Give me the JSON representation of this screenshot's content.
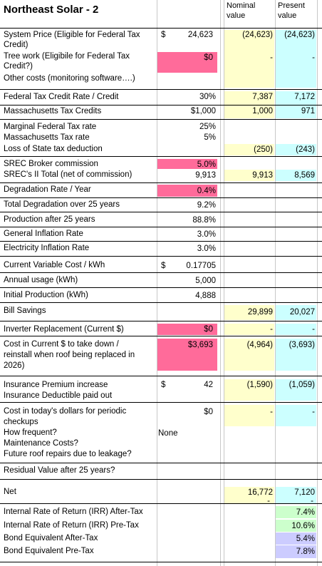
{
  "sheet": {
    "title": "Northeast Solar - 2",
    "col_nominal_1": "Nominal",
    "col_nominal_2": "value",
    "col_present_1": "Present",
    "col_present_2": "value",
    "colors": {
      "pink": "#ff6b9a",
      "yellow": "#ffffcc",
      "cyan": "#ccffff",
      "green": "#ccffcc",
      "lavender": "#ccccff"
    },
    "rows": {
      "system_price_1": "System Price (Eligible for Federal Tax",
      "system_price_2": "Credit)",
      "system_price_currency": "$",
      "system_price_value": "24,623",
      "system_price_nominal": "(24,623)",
      "system_price_present": "(24,623)",
      "tree_work_1": "Tree work (Eligibile for Federal Tax",
      "tree_work_2": "Credit?)",
      "tree_work_value": "$0",
      "tree_work_nominal": "-",
      "tree_work_present": "-",
      "other_costs": "Other costs (monitoring software….)",
      "fed_tax_credit": "Federal Tax Credit Rate / Credit",
      "fed_tax_credit_value": "30%",
      "fed_tax_credit_nominal": "7,387",
      "fed_tax_credit_present": "7,172",
      "ma_tax_credits": "Massachusetts Tax Credits",
      "ma_tax_credits_value": "$1,000",
      "ma_tax_credits_nominal": "1,000",
      "ma_tax_credits_present": "971",
      "marginal_fed": "Marginal Federal Tax rate",
      "marginal_fed_value": "25%",
      "ma_tax_rate": "Massachusetts Tax rate",
      "ma_tax_rate_value": "5%",
      "loss_state": "Loss of State tax deduction",
      "loss_state_nominal": "(250)",
      "loss_state_present": "(243)",
      "srec_broker": "SREC Broker commission",
      "srec_broker_value": "5.0%",
      "srec_total": "SREC's II Total (net of commission)",
      "srec_total_value": "9,913",
      "srec_total_nominal": "9,913",
      "srec_total_present": "8,569",
      "degradation": "Degradation Rate / Year",
      "degradation_value": "0.4%",
      "total_degradation": "Total Degradation over 25 years",
      "total_degradation_value": "9.2%",
      "production_25": "Production after 25 years",
      "production_25_value": "88.8%",
      "general_inflation": "General Inflation Rate",
      "general_inflation_value": "3.0%",
      "electricity_inflation": "Electricity Inflation Rate",
      "electricity_inflation_value": "3.0%",
      "variable_cost": "Current Variable Cost / kWh",
      "variable_cost_currency": "$",
      "variable_cost_value": "0.17705",
      "annual_usage": "Annual usage (kWh)",
      "annual_usage_value": "5,000",
      "initial_production": "Initial Production (kWh)",
      "initial_production_value": "4,888",
      "bill_savings": "Bill Savings",
      "bill_savings_nominal": "29,899",
      "bill_savings_present": "20,027",
      "inverter": "Inverter Replacement (Current $)",
      "inverter_value": "$0",
      "inverter_nominal": "-",
      "inverter_present": "-",
      "roof_cost_1": "Cost in Current $ to take down /",
      "roof_cost_2": "reinstall when roof being replaced in",
      "roof_cost_3": "2026)",
      "roof_cost_value": "$3,693",
      "roof_cost_nominal": "(4,964)",
      "roof_cost_present": "(3,693)",
      "insurance_premium": "Insurance Premium increase",
      "insurance_premium_currency": "$",
      "insurance_premium_value": "42",
      "insurance_premium_nominal": "(1,590)",
      "insurance_premium_present": "(1,059)",
      "insurance_deductible": "Insurance Deductible paid out",
      "checkups_1": "Cost in today's dollars for periodic",
      "checkups_2": "checkups",
      "checkups_value": "$0",
      "checkups_nominal": "-",
      "checkups_present": "-",
      "how_frequent": "How frequent?",
      "how_frequent_value": "None",
      "maintenance": "Maintenance Costs?",
      "future_roof": "Future roof repairs due to leakage?",
      "residual": "Residual Value after 25 years?",
      "net": "Net",
      "net_nominal": "16,772",
      "net_present": "7,120",
      "dash_nominal": "-",
      "dash_present": "-",
      "irr_after": "Internal Rate of Return (IRR) After-Tax",
      "irr_after_value": "7.4%",
      "irr_pre": "Internal Rate of Return (IRR) Pre-Tax",
      "irr_pre_value": "10.6%",
      "bond_after": "Bond Equivalent After-Tax",
      "bond_after_value": "5.4%",
      "bond_pre": "Bond Equivalent Pre-Tax",
      "bond_pre_value": "7.8%"
    }
  }
}
